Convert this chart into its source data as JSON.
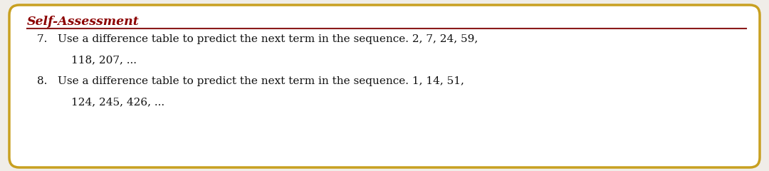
{
  "title": "Self-Assessment",
  "title_color": "#8B0000",
  "line_color": "#8B1A1A",
  "border_color": "#C8A020",
  "background_color": "#FFFFFF",
  "outer_bg": "#F0EDE8",
  "item7_line1": "7.   Use a difference table to predict the next term in the sequence. 2, 7, 24, 59,",
  "item7_line2": "118, 207, ...",
  "item8_line1": "8.   Use a difference table to predict the next term in the sequence. 1, 14, 51,",
  "item8_line2": "124, 245, 426, ...",
  "text_color": "#111111",
  "font_size_title": 12.5,
  "font_size_body": 11.0
}
